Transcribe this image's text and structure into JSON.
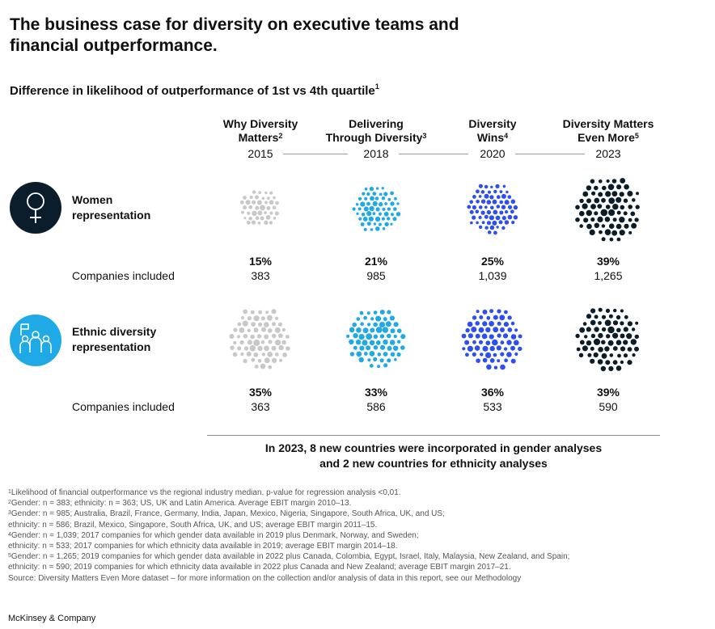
{
  "title": "The business case for diversity on executive teams and financial outperformance.",
  "subtitle": "Difference in likelihood of outperformance of 1st vs 4th quartile",
  "subtitle_sup": "1",
  "chart_data": {
    "type": "bubble-grid",
    "studies": [
      {
        "name": "Why Diversity Matters",
        "sup": "2",
        "year": "2015"
      },
      {
        "name": "Delivering Through Diversity",
        "sup": "3",
        "year": "2018"
      },
      {
        "name": "Diversity Wins",
        "sup": "4",
        "year": "2020"
      },
      {
        "name": "Diversity Matters Even More",
        "sup": "5",
        "year": "2023"
      }
    ],
    "rows": [
      {
        "label": "Women representation",
        "icon": "female-symbol-icon",
        "values_pct": [
          15,
          21,
          25,
          39
        ],
        "values_text": [
          "15%",
          "21%",
          "25%",
          "39%"
        ],
        "companies_label": "Companies included",
        "companies": [
          "383",
          "985",
          "1,039",
          "1,265"
        ]
      },
      {
        "label": "Ethnic diversity representation",
        "icon": "group-of-people-icon",
        "values_pct": [
          35,
          33,
          36,
          39
        ],
        "values_text": [
          "35%",
          "33%",
          "36%",
          "39%"
        ],
        "companies_label": "Companies included",
        "companies": [
          "363",
          "586",
          "533",
          "590"
        ]
      }
    ],
    "colors": [
      "#c8c8c8",
      "#1fa9e6",
      "#2d4ef0",
      "#0b1d2b"
    ]
  },
  "colhead": {
    "c1_line1": "Why Diversity",
    "c1_line2": "Matters",
    "c1_sup": "2",
    "c1_year": "2015",
    "c2_line1": "Delivering",
    "c2_line2": "Through Diversity",
    "c2_sup": "3",
    "c2_year": "2018",
    "c3_line1": "Diversity",
    "c3_line2": "Wins",
    "c3_sup": "4",
    "c3_year": "2020",
    "c4_line1": "Diversity Matters",
    "c4_line2": "Even More",
    "c4_sup": "5",
    "c4_year": "2023"
  },
  "row_labels": {
    "women_line1": "Women",
    "women_line2": "representation",
    "ethnic_line1": "Ethnic diversity",
    "ethnic_line2": "representation"
  },
  "note": {
    "line1": "In 2023, 8 new countries were incorporated in gender analyses",
    "line2": "and 2 new countries for ethnicity analyses"
  },
  "footnotes": [
    {
      "sup": "1",
      "text": "Likelihood of financial outperformance vs the regional industry median. p-value for regression analysis <0,01."
    },
    {
      "sup": "2",
      "text": "Gender: n = 383; ethnicity: n = 363; US, UK and Latin America. Average EBIT margin 2010–13."
    },
    {
      "sup": "3",
      "text": "Gender: n = 985; Australia, Brazil, France, Germany, India, Japan, Mexico, Nigeria, Singapore, South Africa, UK, and US;"
    },
    {
      "sup": "",
      "text": "  ethnicity: n = 586; Brazil, Mexico, Singapore, South Africa, UK, and US; average EBIT margin 2011–15."
    },
    {
      "sup": "4",
      "text": "Gender: n = 1,039; 2017 companies for which gender data available in 2019 plus Denmark, Norway, and Sweden;"
    },
    {
      "sup": "",
      "text": "  ethnicity: n = 533; 2017 companies for which ethnicity data available in 2019; average EBIT margin 2014–18."
    },
    {
      "sup": "5",
      "text": "Gender: n = 1,265; 2019 companies for which gender data available in 2022 plus Canada, Colombia, Egypt, Israel, Italy, Malaysia, New Zealand, and Spain;"
    },
    {
      "sup": "",
      "text": "  ethnicity: n = 590; 2019 companies for which ethnicity data available in 2022 plus Canada and New Zealand; average EBIT margin 2017–21."
    },
    {
      "sup": "",
      "text": "  Source: Diversity Matters Even More dataset – for more information on the collection and/or analysis of data in this report, see our Methodology"
    }
  ],
  "brand": "McKinsey & Company"
}
